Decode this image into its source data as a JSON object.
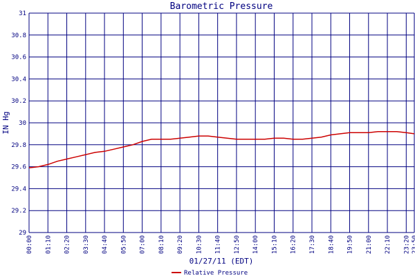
{
  "chart_data": {
    "type": "line",
    "title": "Barometric Pressure",
    "xlabel": "01/27/11 (EDT)",
    "ylabel": "IN Hg",
    "ylim": [
      29,
      31
    ],
    "y_ticks": [
      "29",
      "29.2",
      "29.4",
      "29.6",
      "29.8",
      "30",
      "30.2",
      "30.4",
      "30.6",
      "30.8",
      "31"
    ],
    "x_ticks": [
      "00:00",
      "01:10",
      "02:20",
      "03:30",
      "04:40",
      "05:50",
      "07:00",
      "08:10",
      "09:20",
      "10:30",
      "11:40",
      "12:50",
      "14:00",
      "15:10",
      "16:20",
      "17:30",
      "18:40",
      "19:50",
      "21:00",
      "22:10",
      "23:20",
      "23:50"
    ],
    "grid": true,
    "legend_position": "bottom",
    "colors": {
      "series": "#cc0000",
      "grid": "#000080",
      "text": "#000080",
      "background": "#ffffff"
    },
    "series": [
      {
        "name": "Relative Pressure",
        "x": [
          "00:00",
          "00:35",
          "01:10",
          "01:45",
          "02:20",
          "02:55",
          "03:30",
          "04:05",
          "04:40",
          "05:15",
          "05:50",
          "06:25",
          "07:00",
          "07:35",
          "08:10",
          "08:45",
          "09:20",
          "09:55",
          "10:30",
          "11:05",
          "11:40",
          "12:15",
          "12:50",
          "13:25",
          "14:00",
          "14:35",
          "15:10",
          "15:45",
          "16:20",
          "16:55",
          "17:30",
          "18:05",
          "18:40",
          "19:15",
          "19:50",
          "20:25",
          "21:00",
          "21:35",
          "22:10",
          "22:45",
          "23:20",
          "23:50"
        ],
        "values": [
          29.59,
          29.6,
          29.62,
          29.65,
          29.67,
          29.69,
          29.71,
          29.73,
          29.74,
          29.76,
          29.78,
          29.8,
          29.83,
          29.85,
          29.85,
          29.85,
          29.86,
          29.87,
          29.88,
          29.88,
          29.87,
          29.86,
          29.85,
          29.85,
          29.85,
          29.85,
          29.86,
          29.86,
          29.85,
          29.85,
          29.86,
          29.87,
          29.89,
          29.9,
          29.91,
          29.91,
          29.91,
          29.92,
          29.92,
          29.92,
          29.91,
          29.9
        ]
      }
    ]
  }
}
